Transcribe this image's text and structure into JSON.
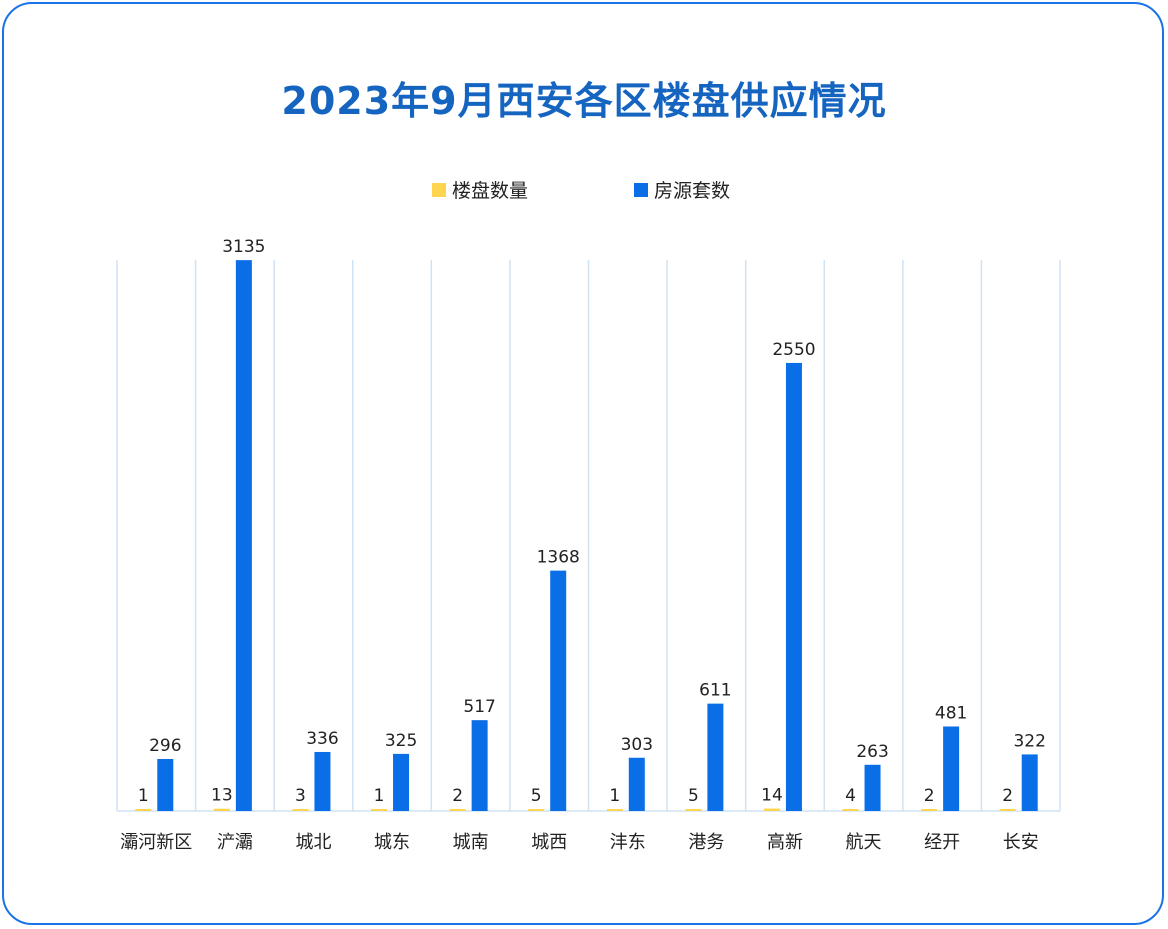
{
  "chart_data": {
    "type": "bar",
    "title": "2023年9月西安各区楼盘供应情况",
    "legend_position": "top-center",
    "categories": [
      "灞河新区",
      "浐灞",
      "城北",
      "城东",
      "城南",
      "城西",
      "沣东",
      "港务",
      "高新",
      "航天",
      "经开",
      "长安"
    ],
    "series": [
      {
        "name": "楼盘数量",
        "color": "#ffd54f",
        "values": [
          1,
          13,
          3,
          1,
          2,
          5,
          1,
          5,
          14,
          4,
          2,
          2
        ]
      },
      {
        "name": "房源套数",
        "color": "#0a6ee6",
        "values": [
          296,
          3135,
          336,
          325,
          517,
          1368,
          303,
          611,
          2550,
          263,
          481,
          322
        ]
      }
    ],
    "ylim": [
      0,
      3500
    ],
    "grid": "vertical",
    "data_labels": true
  }
}
